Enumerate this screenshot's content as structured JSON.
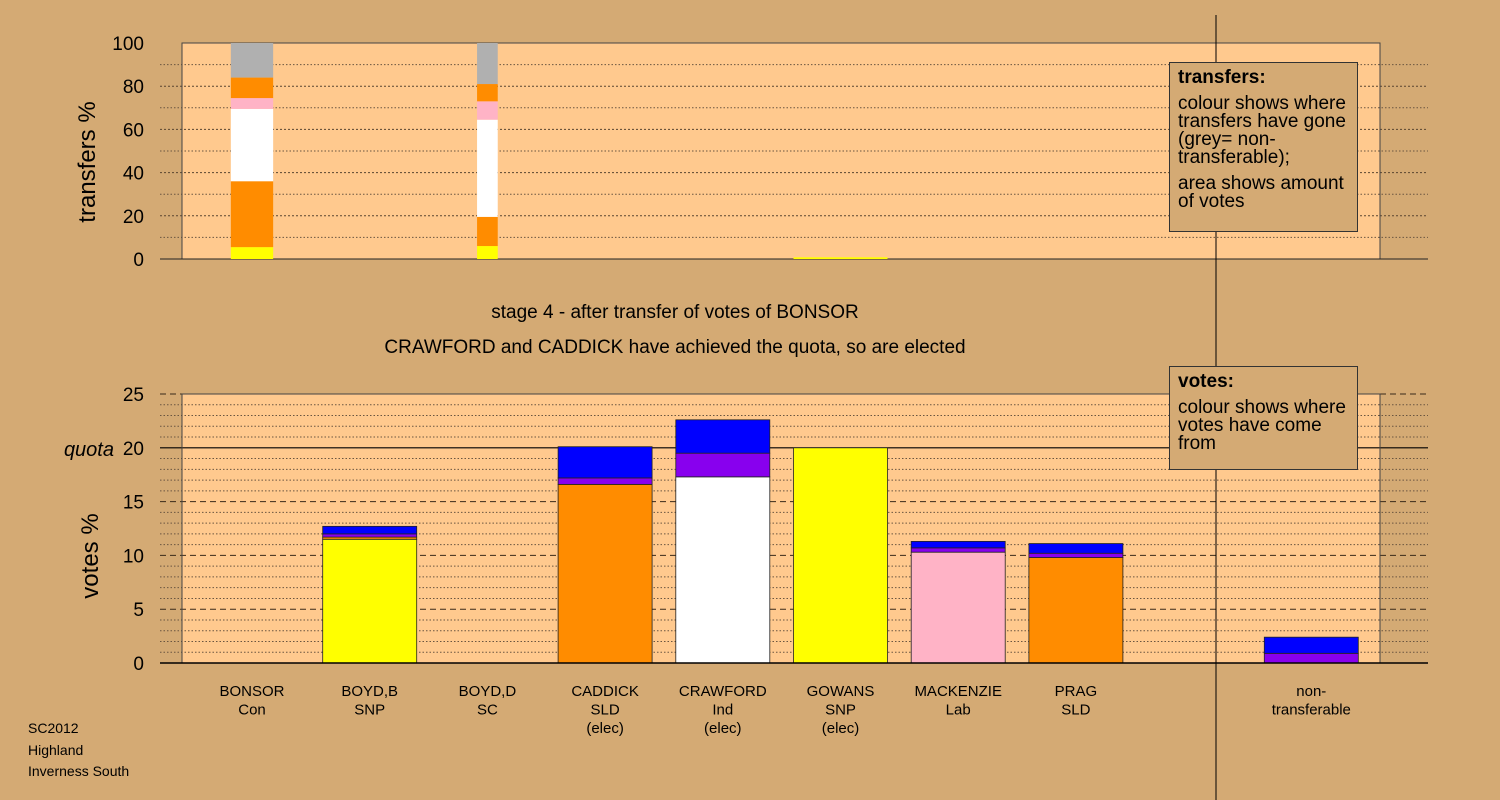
{
  "stage_title": "stage 4 - after transfer of votes of BONSOR",
  "stage_subtitle": "CRAWFORD and CADDICK have achieved the quota, so are elected",
  "footer": {
    "line1": "SC2012",
    "line2": "Highland",
    "line3": "Inverness South"
  },
  "transfers_legend": {
    "heading": "transfers:",
    "p1": "colour shows where transfers have gone (grey= non-transferable);",
    "p2": "area shows amount of votes"
  },
  "votes_legend": {
    "heading": "votes:",
    "p1": "colour shows where votes have come from"
  },
  "colors": {
    "background": "#d4aa74",
    "plot_background": "#ffc98e",
    "yellow": "#ffff00",
    "orange": "#ff8c00",
    "white": "#ffffff",
    "pink": "#ffb3c6",
    "grey": "#b0b0b0",
    "purple": "#8800ee",
    "blue": "#0000ff"
  },
  "chart_data": [
    {
      "type": "bar",
      "name": "transfers",
      "ylabel": "transfers %",
      "ylim": [
        0,
        100
      ],
      "yticks": [
        "0",
        "20",
        "40",
        "60",
        "80",
        "100"
      ],
      "grid": true,
      "legend_position": "top-right",
      "bars": [
        {
          "category": "BONSOR",
          "width_fraction": 0.45,
          "segments": [
            {
              "color": "yellow",
              "value": 5.5
            },
            {
              "color": "orange",
              "value": 30.5
            },
            {
              "color": "white",
              "value": 33.5
            },
            {
              "color": "pink",
              "value": 5
            },
            {
              "color": "orange",
              "value": 9.5
            },
            {
              "color": "grey",
              "value": 16
            }
          ]
        },
        {
          "category": "BOYD,D",
          "width_fraction": 0.22,
          "segments": [
            {
              "color": "yellow",
              "value": 6
            },
            {
              "color": "orange",
              "value": 13.5
            },
            {
              "color": "white",
              "value": 45
            },
            {
              "color": "pink",
              "value": 8.5
            },
            {
              "color": "orange",
              "value": 8
            },
            {
              "color": "grey",
              "value": 19
            }
          ]
        },
        {
          "category": "GOWANS",
          "width_fraction": 1.0,
          "segments": [
            {
              "color": "yellow",
              "value": 0.8
            }
          ]
        }
      ]
    },
    {
      "type": "bar",
      "name": "votes",
      "ylabel": "votes %",
      "ylim": [
        0,
        25
      ],
      "yticks": [
        "0",
        "5",
        "10",
        "15",
        "20",
        "25"
      ],
      "quota_label": "quota",
      "quota_value": 20,
      "grid": true,
      "legend_position": "top-right",
      "categories": [
        {
          "name": "BONSOR",
          "party": "Con",
          "status": ""
        },
        {
          "name": "BOYD,B",
          "party": "SNP",
          "status": ""
        },
        {
          "name": "BOYD,D",
          "party": "SC",
          "status": ""
        },
        {
          "name": "CADDICK",
          "party": "SLD",
          "status": "(elec)"
        },
        {
          "name": "CRAWFORD",
          "party": "Ind",
          "status": "(elec)"
        },
        {
          "name": "GOWANS",
          "party": "SNP",
          "status": "(elec)"
        },
        {
          "name": "MACKENZIE",
          "party": "Lab",
          "status": ""
        },
        {
          "name": "PRAG",
          "party": "SLD",
          "status": ""
        },
        {
          "name": "",
          "party": "",
          "status": ""
        },
        {
          "name": "non-",
          "party": "transferable",
          "status": ""
        }
      ],
      "bars": [
        {
          "category": "BONSOR",
          "segments": []
        },
        {
          "category": "BOYD,B",
          "segments": [
            {
              "color": "yellow",
              "value": 11.5
            },
            {
              "color": "orange",
              "value": 0.2
            },
            {
              "color": "purple",
              "value": 0.3
            },
            {
              "color": "blue",
              "value": 0.7
            }
          ]
        },
        {
          "category": "BOYD,D",
          "segments": []
        },
        {
          "category": "CADDICK",
          "segments": [
            {
              "color": "orange",
              "value": 16.6
            },
            {
              "color": "purple",
              "value": 0.6
            },
            {
              "color": "blue",
              "value": 2.9
            }
          ]
        },
        {
          "category": "CRAWFORD",
          "segments": [
            {
              "color": "white",
              "value": 17.3
            },
            {
              "color": "purple",
              "value": 2.2
            },
            {
              "color": "blue",
              "value": 3.1
            }
          ]
        },
        {
          "category": "GOWANS",
          "segments": [
            {
              "color": "yellow",
              "value": 20.0
            }
          ]
        },
        {
          "category": "MACKENZIE",
          "segments": [
            {
              "color": "pink",
              "value": 10.3
            },
            {
              "color": "purple",
              "value": 0.4
            },
            {
              "color": "blue",
              "value": 0.6
            }
          ]
        },
        {
          "category": "PRAG",
          "segments": [
            {
              "color": "orange",
              "value": 9.8
            },
            {
              "color": "purple",
              "value": 0.4
            },
            {
              "color": "blue",
              "value": 0.9
            }
          ]
        },
        {
          "category": "",
          "segments": []
        },
        {
          "category": "non-transferable",
          "segments": [
            {
              "color": "purple",
              "value": 0.9
            },
            {
              "color": "blue",
              "value": 1.5
            }
          ]
        }
      ]
    }
  ]
}
